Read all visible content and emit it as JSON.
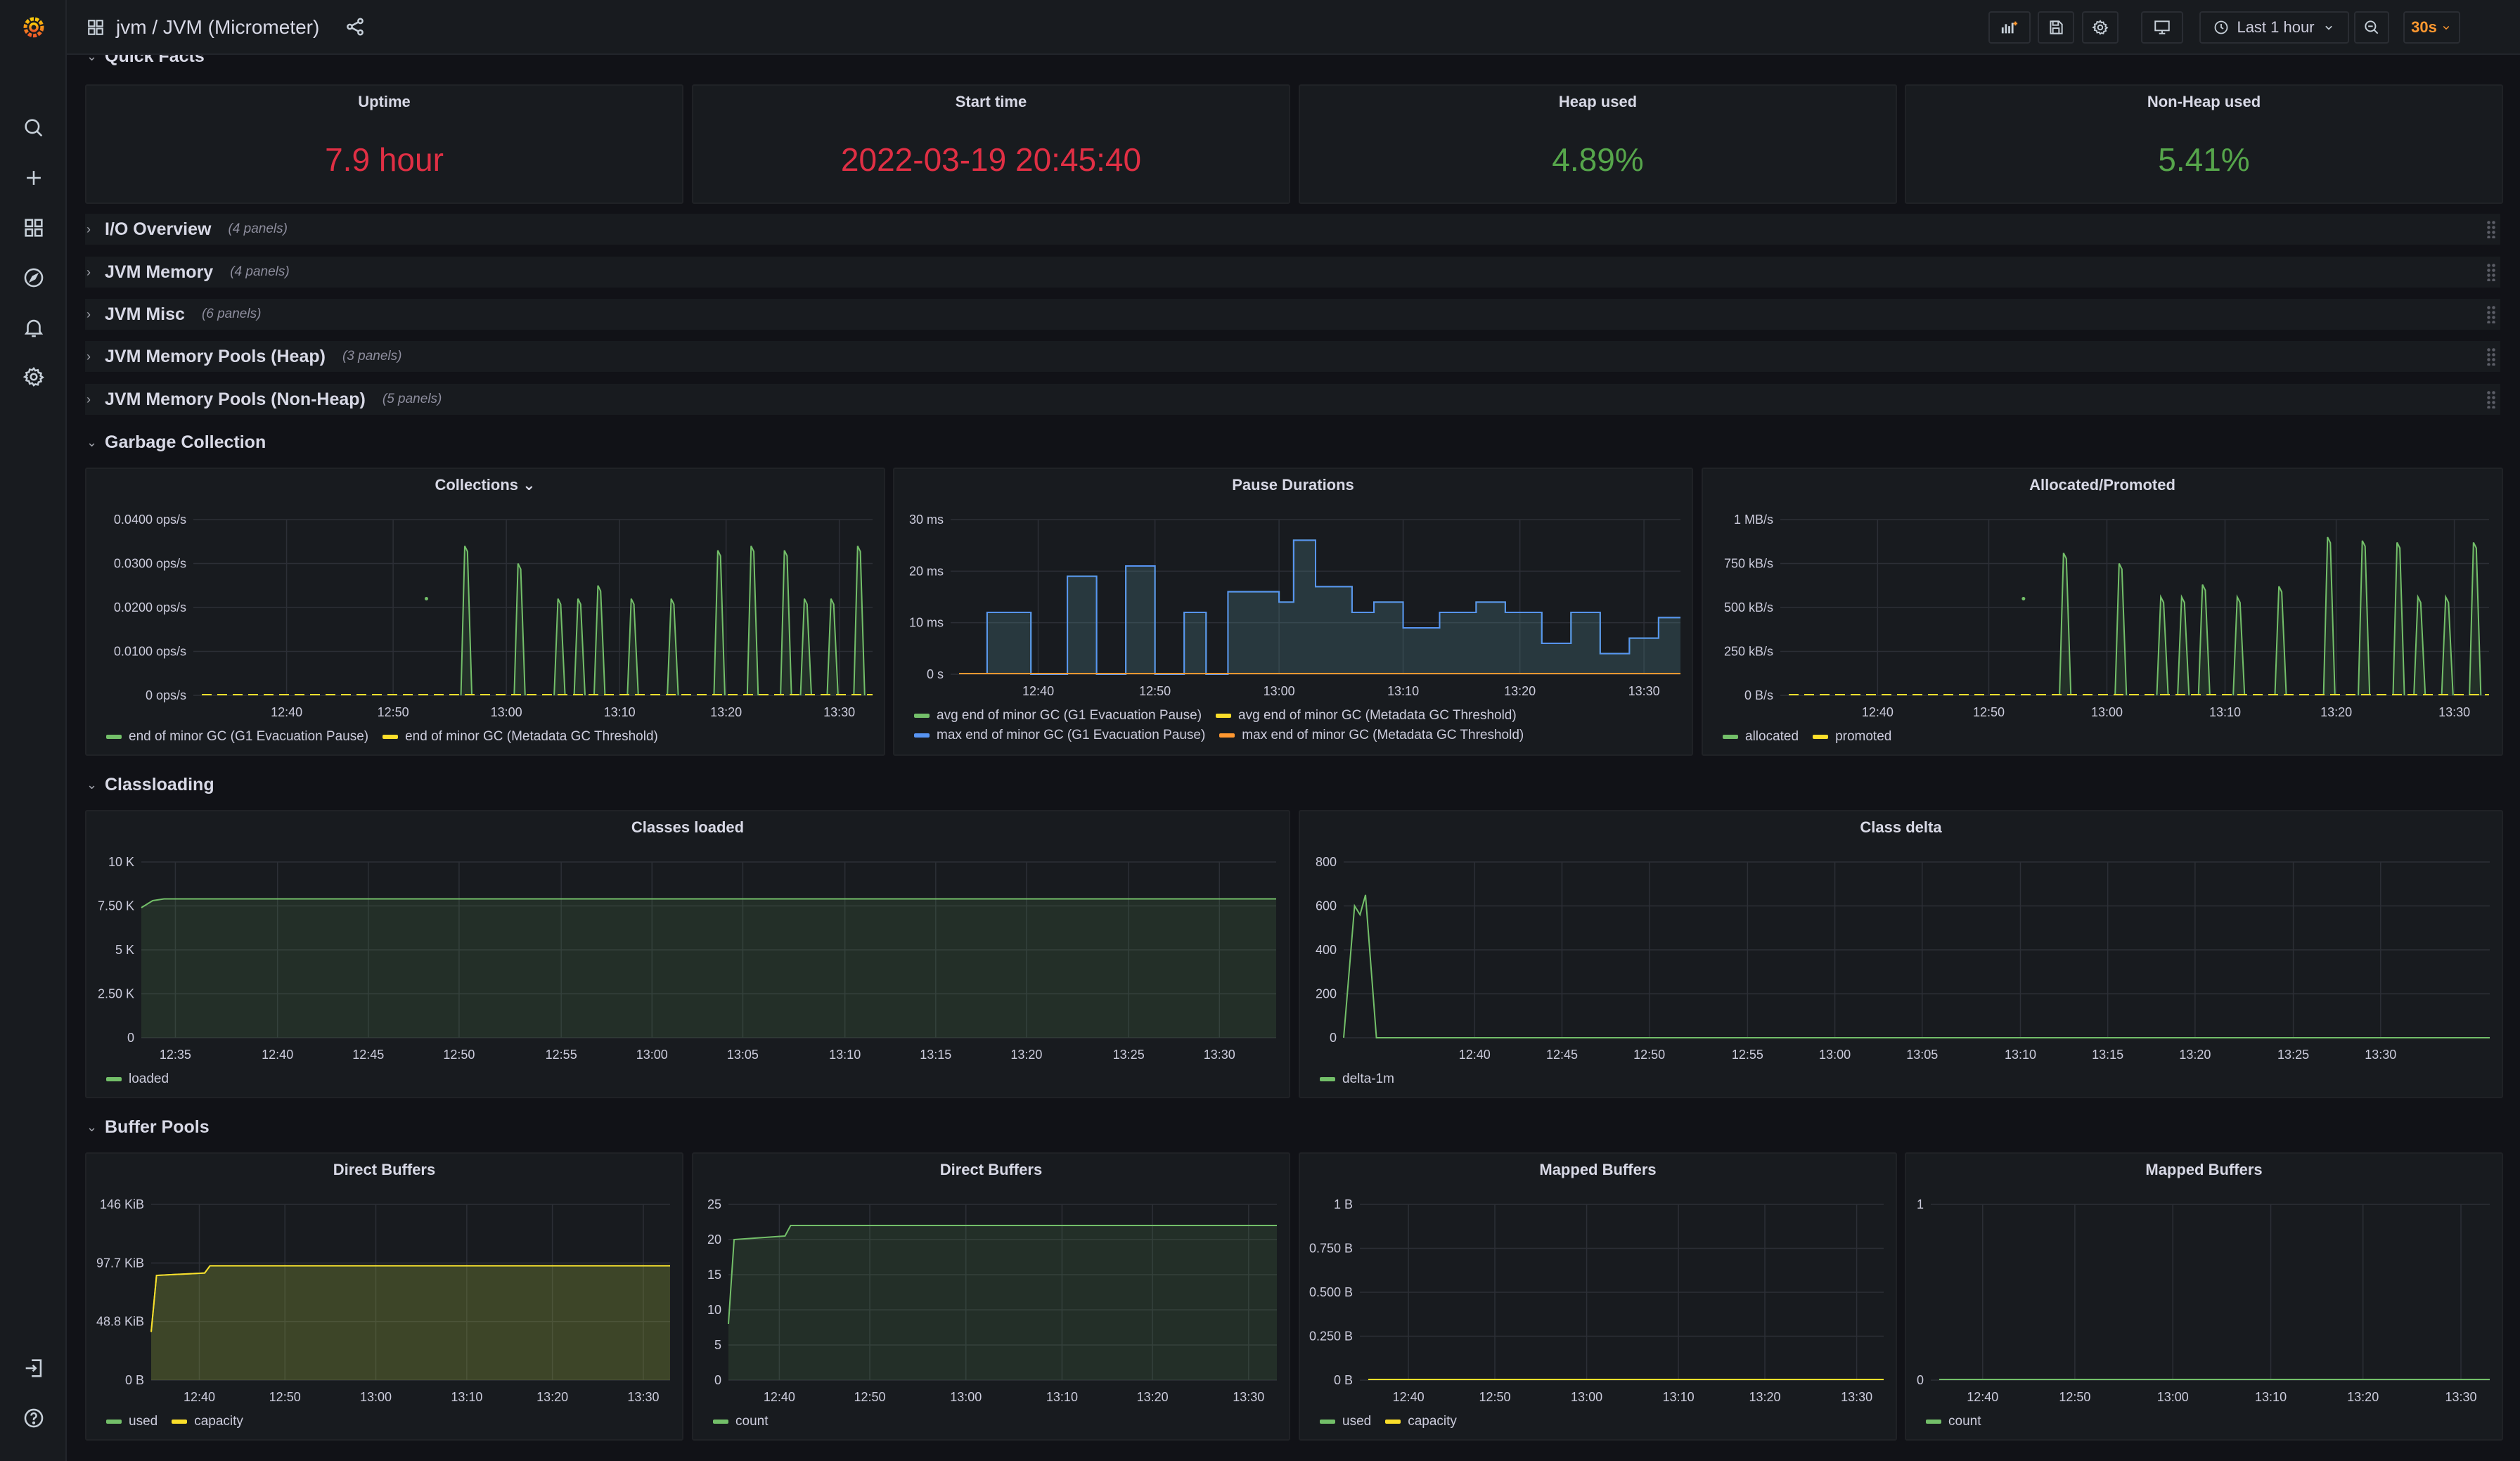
{
  "breadcrumb": "jvm / JVM (Micrometer)",
  "toolbar": {
    "time_range": "Last 1 hour",
    "refresh_interval": "30s"
  },
  "rows": {
    "quick_facts": {
      "title": "Quick Facts"
    },
    "io": {
      "title": "I/O Overview",
      "count": "(4 panels)"
    },
    "jvm_memory": {
      "title": "JVM Memory",
      "count": "(4 panels)"
    },
    "jvm_misc": {
      "title": "JVM Misc",
      "count": "(6 panels)"
    },
    "pools_heap": {
      "title": "JVM Memory Pools (Heap)",
      "count": "(3 panels)"
    },
    "pools_nonheap": {
      "title": "JVM Memory Pools (Non-Heap)",
      "count": "(5 panels)"
    },
    "gc": {
      "title": "Garbage Collection"
    },
    "classloading": {
      "title": "Classloading"
    },
    "buffer_pools": {
      "title": "Buffer Pools"
    }
  },
  "stats": {
    "uptime": {
      "title": "Uptime",
      "value": "7.9 hour",
      "color": "#e02f44"
    },
    "start_time": {
      "title": "Start time",
      "value": "2022-03-19 20:45:40",
      "color": "#e02f44"
    },
    "heap_used": {
      "title": "Heap used",
      "value": "4.89%",
      "color": "#56a64b"
    },
    "nonheap_used": {
      "title": "Non-Heap used",
      "value": "5.41%",
      "color": "#56a64b"
    }
  },
  "chart_data": [
    {
      "id": "collections",
      "title": "Collections ⌄",
      "type": "line",
      "yticks": [
        "0 ops/s",
        "0.0100 ops/s",
        "0.0200 ops/s",
        "0.0300 ops/s",
        "0.0400 ops/s"
      ],
      "ylim": [
        0,
        0.04
      ],
      "xticks": [
        {
          "x": 12.67,
          "label": "12:40"
        },
        {
          "x": 12.83,
          "label": "12:50"
        },
        {
          "x": 13.0,
          "label": "13:00"
        },
        {
          "x": 13.17,
          "label": "13:10"
        },
        {
          "x": 13.33,
          "label": "13:20"
        },
        {
          "x": 13.5,
          "label": "13:30"
        }
      ],
      "xlim": [
        12.53,
        13.55
      ],
      "series": [
        {
          "name": "end of minor GC (G1 Evacuation Pause)",
          "color": "#73bf69",
          "style": "spikes",
          "spikes": [
            [
              12.94,
              0.034
            ],
            [
              13.02,
              0.03
            ],
            [
              13.08,
              0.022
            ],
            [
              13.11,
              0.022
            ],
            [
              13.14,
              0.025
            ],
            [
              13.19,
              0.022
            ],
            [
              13.25,
              0.022
            ],
            [
              13.32,
              0.033
            ],
            [
              13.37,
              0.034
            ],
            [
              13.42,
              0.033
            ],
            [
              13.45,
              0.022
            ],
            [
              13.49,
              0.022
            ],
            [
              13.53,
              0.034
            ]
          ],
          "points": [
            [
              12.88,
              0.022
            ]
          ]
        },
        {
          "name": "end of minor GC (Metadata GC Threshold)",
          "color": "#fade2a",
          "style": "flat",
          "y": 0
        }
      ]
    },
    {
      "id": "pause",
      "title": "Pause Durations",
      "type": "line",
      "yticks": [
        "0 s",
        "10 ms",
        "20 ms",
        "30 ms"
      ],
      "ylim": [
        0,
        0.03
      ],
      "xticks": [
        {
          "x": 12.67,
          "label": "12:40"
        },
        {
          "x": 12.83,
          "label": "12:50"
        },
        {
          "x": 13.0,
          "label": "13:00"
        },
        {
          "x": 13.17,
          "label": "13:10"
        },
        {
          "x": 13.33,
          "label": "13:20"
        },
        {
          "x": 13.5,
          "label": "13:30"
        }
      ],
      "xlim": [
        12.55,
        13.55
      ],
      "series": [
        {
          "name": "avg end of minor GC (G1 Evacuation Pause)",
          "color": "#73bf69",
          "style": "steps",
          "steps": [
            [
              12.6,
              0.012
            ],
            [
              12.66,
              0
            ],
            [
              12.71,
              0.019
            ],
            [
              12.75,
              0
            ],
            [
              12.79,
              0.021
            ],
            [
              12.83,
              0
            ],
            [
              12.87,
              0.012
            ],
            [
              12.9,
              0
            ],
            [
              12.93,
              0.016
            ],
            [
              13.0,
              0.014
            ],
            [
              13.02,
              0.026
            ],
            [
              13.05,
              0.017
            ],
            [
              13.1,
              0.012
            ],
            [
              13.13,
              0.014
            ],
            [
              13.17,
              0.009
            ],
            [
              13.22,
              0.012
            ],
            [
              13.27,
              0.014
            ],
            [
              13.31,
              0.012
            ],
            [
              13.36,
              0.006
            ],
            [
              13.4,
              0.012
            ],
            [
              13.44,
              0.004
            ],
            [
              13.48,
              0.007
            ],
            [
              13.52,
              0.011
            ],
            [
              13.55,
              0.011
            ]
          ]
        },
        {
          "name": "avg end of minor GC (Metadata GC Threshold)",
          "color": "#fade2a",
          "style": "flat",
          "y": 0
        },
        {
          "name": "max end of minor GC (G1 Evacuation Pause)",
          "color": "#5794f2",
          "style": "steps",
          "steps": [
            [
              12.6,
              0.012
            ],
            [
              12.66,
              0
            ],
            [
              12.71,
              0.019
            ],
            [
              12.75,
              0
            ],
            [
              12.79,
              0.021
            ],
            [
              12.83,
              0
            ],
            [
              12.87,
              0.012
            ],
            [
              12.9,
              0
            ],
            [
              12.93,
              0.016
            ],
            [
              13.0,
              0.014
            ],
            [
              13.02,
              0.026
            ],
            [
              13.05,
              0.017
            ],
            [
              13.1,
              0.012
            ],
            [
              13.13,
              0.014
            ],
            [
              13.17,
              0.009
            ],
            [
              13.22,
              0.012
            ],
            [
              13.27,
              0.014
            ],
            [
              13.31,
              0.012
            ],
            [
              13.36,
              0.006
            ],
            [
              13.4,
              0.012
            ],
            [
              13.44,
              0.004
            ],
            [
              13.48,
              0.007
            ],
            [
              13.52,
              0.011
            ],
            [
              13.55,
              0.011
            ]
          ]
        },
        {
          "name": "max end of minor GC (Metadata GC Threshold)",
          "color": "#ff9830",
          "style": "flat",
          "y": 0
        }
      ]
    },
    {
      "id": "allocated",
      "title": "Allocated/Promoted",
      "type": "line",
      "yticks": [
        "0 B/s",
        "250 kB/s",
        "500 kB/s",
        "750 kB/s",
        "1 MB/s"
      ],
      "ylim": [
        0,
        1
      ],
      "xticks": [
        {
          "x": 12.67,
          "label": "12:40"
        },
        {
          "x": 12.83,
          "label": "12:50"
        },
        {
          "x": 13.0,
          "label": "13:00"
        },
        {
          "x": 13.17,
          "label": "13:10"
        },
        {
          "x": 13.33,
          "label": "13:20"
        },
        {
          "x": 13.5,
          "label": "13:30"
        }
      ],
      "xlim": [
        12.53,
        13.55
      ],
      "series": [
        {
          "name": "allocated",
          "color": "#73bf69",
          "style": "spikes",
          "spikes": [
            [
              12.94,
              0.81
            ],
            [
              13.02,
              0.75
            ],
            [
              13.08,
              0.56
            ],
            [
              13.11,
              0.56
            ],
            [
              13.14,
              0.63
            ],
            [
              13.19,
              0.56
            ],
            [
              13.25,
              0.62
            ],
            [
              13.32,
              0.9
            ],
            [
              13.37,
              0.88
            ],
            [
              13.42,
              0.87
            ],
            [
              13.45,
              0.56
            ],
            [
              13.49,
              0.56
            ],
            [
              13.53,
              0.87
            ]
          ],
          "points": [
            [
              12.88,
              0.55
            ]
          ]
        },
        {
          "name": "promoted",
          "color": "#fade2a",
          "style": "flat",
          "y": 0
        }
      ]
    },
    {
      "id": "classes",
      "title": "Classes loaded",
      "type": "area",
      "yticks": [
        "0",
        "2.50 K",
        "5 K",
        "7.50 K",
        "10 K"
      ],
      "ylim": [
        0,
        10
      ],
      "xticks": [
        {
          "x": 12.58,
          "label": "12:35"
        },
        {
          "x": 12.67,
          "label": "12:40"
        },
        {
          "x": 12.75,
          "label": "12:45"
        },
        {
          "x": 12.83,
          "label": "12:50"
        },
        {
          "x": 12.92,
          "label": "12:55"
        },
        {
          "x": 13.0,
          "label": "13:00"
        },
        {
          "x": 13.08,
          "label": "13:05"
        },
        {
          "x": 13.17,
          "label": "13:10"
        },
        {
          "x": 13.25,
          "label": "13:15"
        },
        {
          "x": 13.33,
          "label": "13:20"
        },
        {
          "x": 13.42,
          "label": "13:25"
        },
        {
          "x": 13.5,
          "label": "13:30"
        }
      ],
      "xlim": [
        12.55,
        13.55
      ],
      "series": [
        {
          "name": "loaded",
          "color": "#73bf69",
          "style": "line",
          "points": [
            [
              12.55,
              7.4
            ],
            [
              12.56,
              7.8
            ],
            [
              12.57,
              7.9
            ],
            [
              13.55,
              7.9
            ]
          ]
        }
      ]
    },
    {
      "id": "classdelta",
      "title": "Class delta",
      "type": "line",
      "yticks": [
        "0",
        "200",
        "400",
        "600",
        "800"
      ],
      "ylim": [
        0,
        800
      ],
      "xticks": [
        {
          "x": 12.67,
          "label": "12:40"
        },
        {
          "x": 12.75,
          "label": "12:45"
        },
        {
          "x": 12.83,
          "label": "12:50"
        },
        {
          "x": 12.92,
          "label": "12:55"
        },
        {
          "x": 13.0,
          "label": "13:00"
        },
        {
          "x": 13.08,
          "label": "13:05"
        },
        {
          "x": 13.17,
          "label": "13:10"
        },
        {
          "x": 13.25,
          "label": "13:15"
        },
        {
          "x": 13.33,
          "label": "13:20"
        },
        {
          "x": 13.42,
          "label": "13:25"
        },
        {
          "x": 13.5,
          "label": "13:30"
        }
      ],
      "xlim": [
        12.55,
        13.6
      ],
      "series": [
        {
          "name": "delta-1m",
          "color": "#73bf69",
          "style": "line",
          "points": [
            [
              12.55,
              0
            ],
            [
              12.56,
              600
            ],
            [
              12.565,
              560
            ],
            [
              12.57,
              650
            ],
            [
              12.58,
              0
            ],
            [
              13.6,
              0
            ]
          ]
        }
      ]
    },
    {
      "id": "direct1",
      "title": "Direct Buffers",
      "type": "area",
      "yticks": [
        "0 B",
        "48.8 KiB",
        "97.7 KiB",
        "146 KiB"
      ],
      "ylim": [
        0,
        146
      ],
      "xticks": [
        {
          "x": 12.67,
          "label": "12:40"
        },
        {
          "x": 12.83,
          "label": "12:50"
        },
        {
          "x": 13.0,
          "label": "13:00"
        },
        {
          "x": 13.17,
          "label": "13:10"
        },
        {
          "x": 13.33,
          "label": "13:20"
        },
        {
          "x": 13.5,
          "label": "13:30"
        }
      ],
      "xlim": [
        12.58,
        13.55
      ],
      "series": [
        {
          "name": "used",
          "color": "#73bf69",
          "style": "line",
          "points": [
            [
              12.58,
              40
            ],
            [
              12.59,
              87
            ],
            [
              12.68,
              89
            ],
            [
              12.69,
              95
            ],
            [
              13.55,
              95
            ]
          ]
        },
        {
          "name": "capacity",
          "color": "#fade2a",
          "style": "line",
          "points": [
            [
              12.58,
              40
            ],
            [
              12.59,
              87
            ],
            [
              12.68,
              89
            ],
            [
              12.69,
              95
            ],
            [
              13.55,
              95
            ]
          ]
        }
      ]
    },
    {
      "id": "direct2",
      "title": "Direct Buffers",
      "type": "area",
      "yticks": [
        "0",
        "5",
        "10",
        "15",
        "20",
        "25"
      ],
      "ylim": [
        0,
        25
      ],
      "xticks": [
        {
          "x": 12.67,
          "label": "12:40"
        },
        {
          "x": 12.83,
          "label": "12:50"
        },
        {
          "x": 13.0,
          "label": "13:00"
        },
        {
          "x": 13.17,
          "label": "13:10"
        },
        {
          "x": 13.33,
          "label": "13:20"
        },
        {
          "x": 13.5,
          "label": "13:30"
        }
      ],
      "xlim": [
        12.58,
        13.55
      ],
      "series": [
        {
          "name": "count",
          "color": "#73bf69",
          "style": "line",
          "points": [
            [
              12.58,
              8
            ],
            [
              12.59,
              20
            ],
            [
              12.68,
              20.5
            ],
            [
              12.69,
              22
            ],
            [
              13.55,
              22
            ]
          ]
        }
      ]
    },
    {
      "id": "mapped1",
      "title": "Mapped Buffers",
      "type": "line",
      "yticks": [
        "0 B",
        "0.250 B",
        "0.500 B",
        "0.750 B",
        "1 B"
      ],
      "ylim": [
        0,
        1
      ],
      "xticks": [
        {
          "x": 12.67,
          "label": "12:40"
        },
        {
          "x": 12.83,
          "label": "12:50"
        },
        {
          "x": 13.0,
          "label": "13:00"
        },
        {
          "x": 13.17,
          "label": "13:10"
        },
        {
          "x": 13.33,
          "label": "13:20"
        },
        {
          "x": 13.5,
          "label": "13:30"
        }
      ],
      "xlim": [
        12.58,
        13.55
      ],
      "series": [
        {
          "name": "used",
          "color": "#73bf69",
          "style": "flat",
          "y": 0
        },
        {
          "name": "capacity",
          "color": "#fade2a",
          "style": "flat",
          "y": 0
        }
      ]
    },
    {
      "id": "mapped2",
      "title": "Mapped Buffers",
      "type": "line",
      "yticks": [
        "0",
        "1"
      ],
      "ylim": [
        0,
        1
      ],
      "xticks": [
        {
          "x": 12.67,
          "label": "12:40"
        },
        {
          "x": 12.83,
          "label": "12:50"
        },
        {
          "x": 13.0,
          "label": "13:00"
        },
        {
          "x": 13.17,
          "label": "13:10"
        },
        {
          "x": 13.33,
          "label": "13:20"
        },
        {
          "x": 13.5,
          "label": "13:30"
        }
      ],
      "xlim": [
        12.58,
        13.55
      ],
      "series": [
        {
          "name": "count",
          "color": "#73bf69",
          "style": "flat",
          "y": 0
        }
      ]
    }
  ]
}
